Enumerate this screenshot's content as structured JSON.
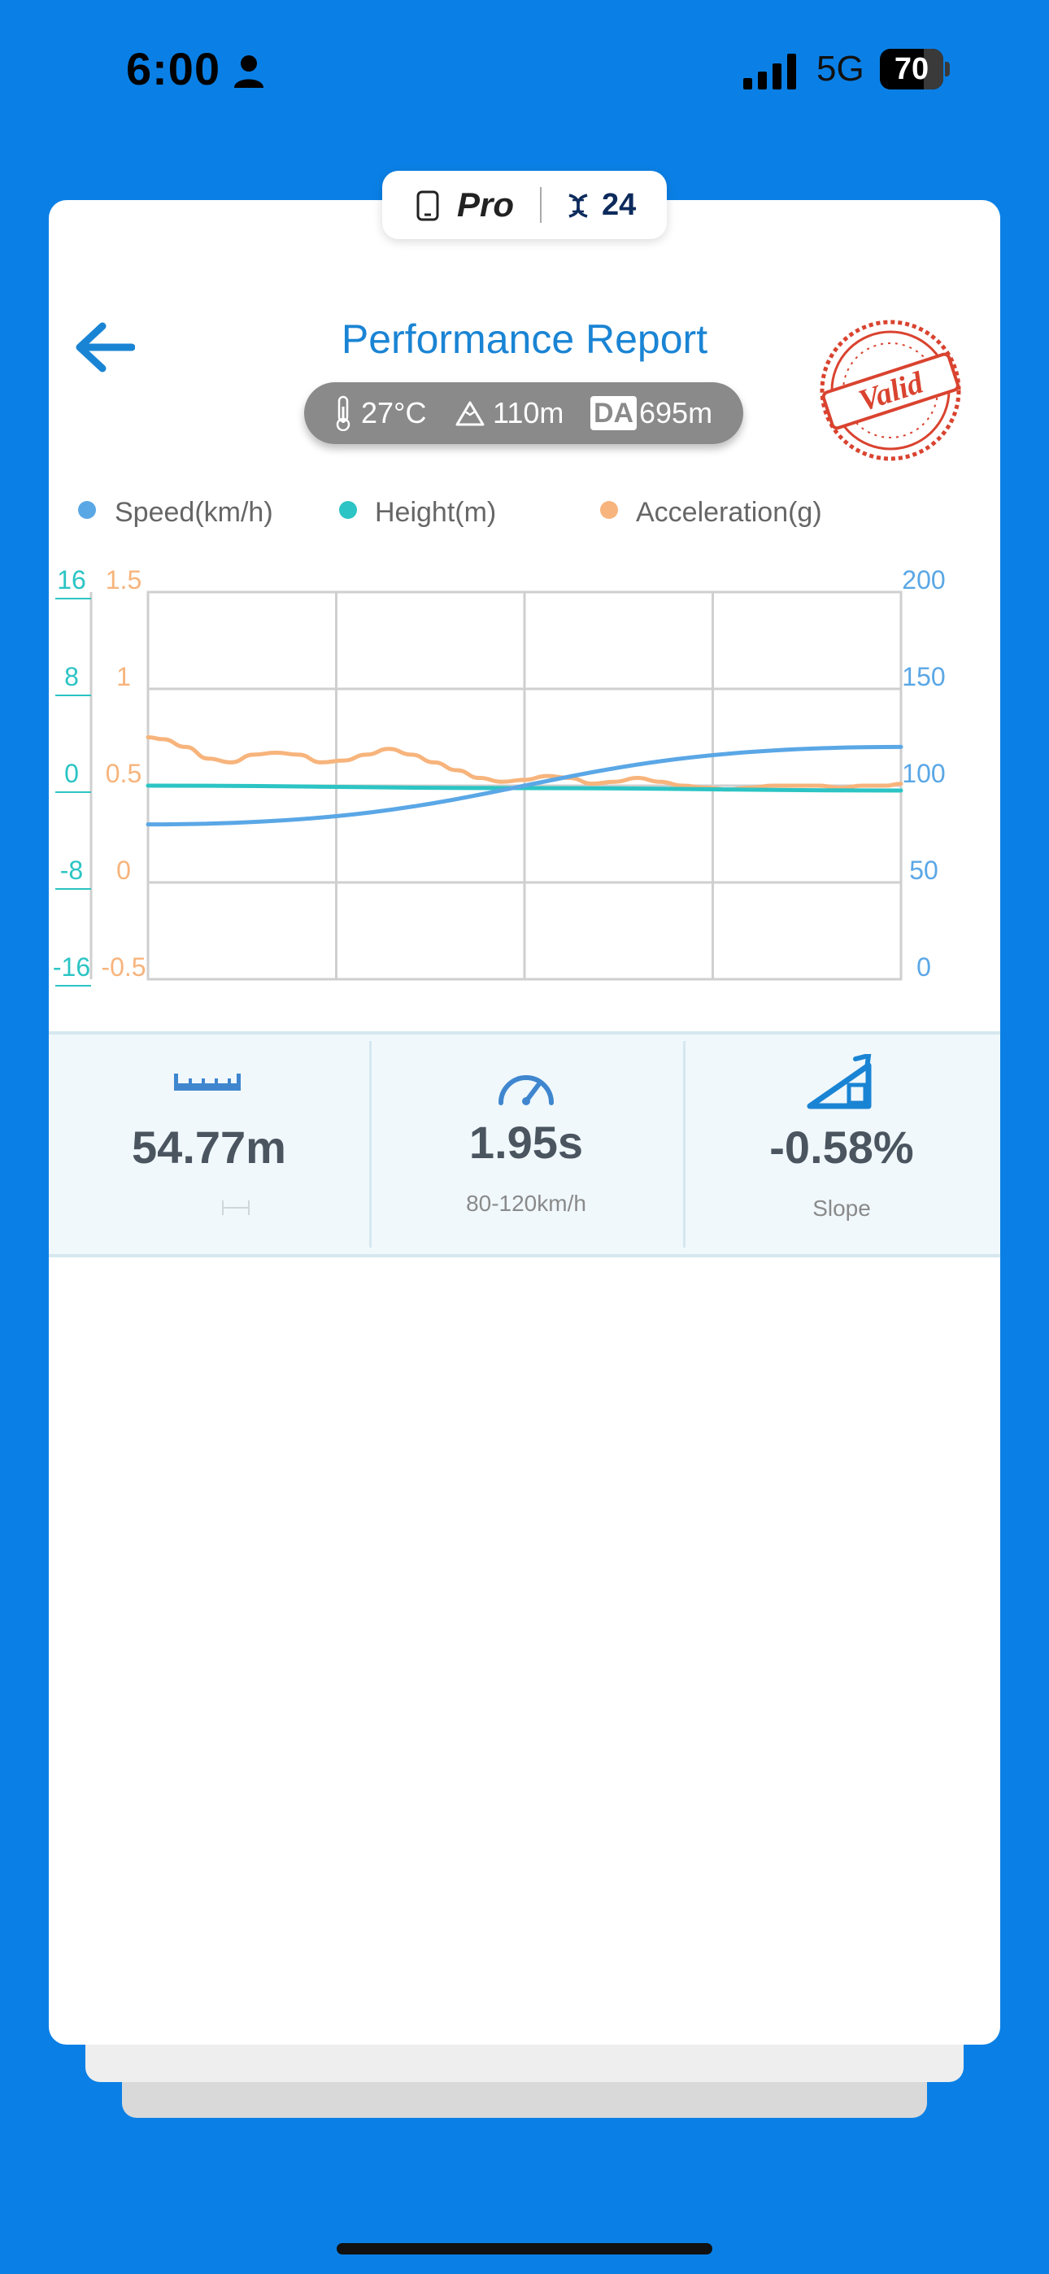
{
  "status_bar": {
    "time": "6:00",
    "network": "5G",
    "battery": "70"
  },
  "badge": {
    "edition": "Pro",
    "count": "24"
  },
  "header": {
    "title": "Performance Report",
    "stamp": "Valid"
  },
  "conditions": {
    "temperature": "27°C",
    "altitude": "110m",
    "da_label": "DA",
    "density_altitude": "695m"
  },
  "legend": {
    "speed": "Speed(km/h)",
    "height": "Height(m)",
    "acceleration": "Acceleration(g)"
  },
  "colors": {
    "speed": "#5aa7e6",
    "height": "#2cc4c4",
    "acceleration": "#f7b47c",
    "brand": "#0a80e6"
  },
  "chart_data": {
    "type": "line",
    "y_axes": {
      "height_ticks": [
        "16",
        "8",
        "0",
        "-8",
        "-16"
      ],
      "acceleration_ticks": [
        "1.5",
        "1",
        "0.5",
        "0",
        "-0.5"
      ],
      "speed_ticks": [
        "200",
        "150",
        "100",
        "50",
        "0"
      ]
    },
    "ranges": {
      "height": [
        -16,
        16
      ],
      "acceleration": [
        -0.5,
        1.5
      ],
      "speed": [
        0,
        200
      ]
    },
    "grid": true,
    "series": [
      {
        "name": "Speed(km/h)",
        "axis": "right",
        "x": [
          0,
          1
        ],
        "values": [
          80,
          120
        ]
      },
      {
        "name": "Height(m)",
        "axis": "left-outer",
        "x": [
          0,
          0.5,
          1
        ],
        "values": [
          0,
          -0.2,
          -0.4
        ]
      },
      {
        "name": "Acceleration(g)",
        "axis": "left-inner",
        "x": [
          0,
          0.02,
          0.05,
          0.08,
          0.11,
          0.14,
          0.17,
          0.2,
          0.23,
          0.26,
          0.29,
          0.32,
          0.35,
          0.38,
          0.41,
          0.44,
          0.47,
          0.5,
          0.53,
          0.56,
          0.59,
          0.62,
          0.65,
          0.68,
          0.71,
          0.74,
          0.77,
          0.8,
          0.83,
          0.86,
          0.89,
          0.92,
          0.95,
          0.98,
          1
        ],
        "values": [
          0.75,
          0.74,
          0.7,
          0.64,
          0.62,
          0.66,
          0.67,
          0.66,
          0.62,
          0.63,
          0.66,
          0.69,
          0.66,
          0.62,
          0.58,
          0.54,
          0.52,
          0.53,
          0.55,
          0.54,
          0.51,
          0.52,
          0.54,
          0.52,
          0.5,
          0.49,
          0.48,
          0.49,
          0.5,
          0.5,
          0.5,
          0.49,
          0.5,
          0.5,
          0.51
        ]
      }
    ]
  },
  "stats": [
    {
      "value": "54.77m",
      "sub": ""
    },
    {
      "value": "1.95s",
      "sub": "80-120km/h"
    },
    {
      "value": "-0.58%",
      "sub": "Slope"
    }
  ]
}
